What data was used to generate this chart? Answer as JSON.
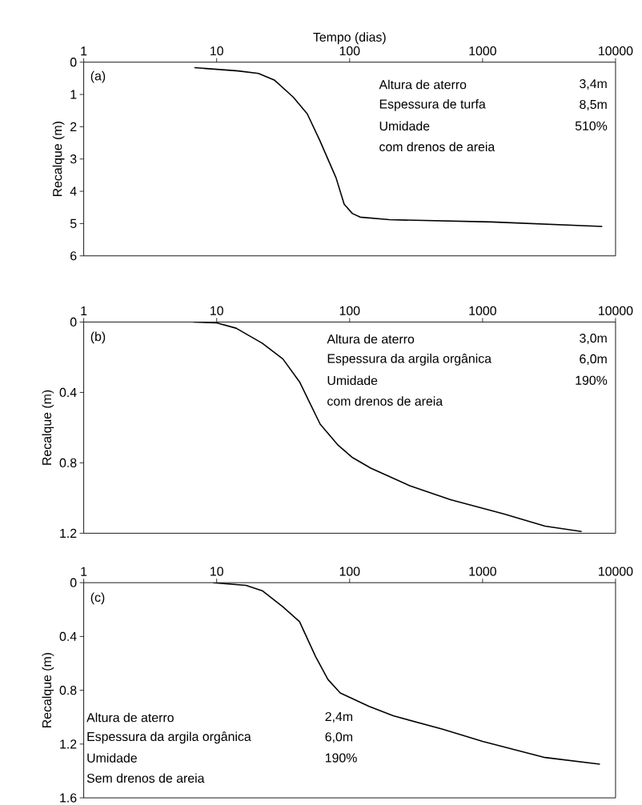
{
  "chart_data": [
    {
      "type": "line",
      "xlabel": "Tempo (dias)",
      "ylabel": "Recalque (m)",
      "log": "x",
      "xlim": [
        1,
        10000
      ],
      "xticks": [
        1,
        10,
        100,
        1000,
        10000
      ],
      "ylim": [
        6,
        0
      ],
      "yticks": [
        0,
        1,
        2,
        3,
        4,
        5,
        6
      ],
      "series": [
        {
          "color": "#000000",
          "x": [
            6.8,
            14.5,
            20.6,
            27.3,
            37.6,
            48,
            59.6,
            79,
            91,
            105,
            120,
            199,
            1170,
            7940
          ],
          "values": [
            0.17,
            0.27,
            0.35,
            0.56,
            1.08,
            1.6,
            2.42,
            3.58,
            4.4,
            4.69,
            4.8,
            4.88,
            4.95,
            5.09
          ]
        }
      ],
      "annotations": [
        "(a)",
        "Altura de aterro",
        "3,4m",
        "Espessura de turfa",
        "8,5m",
        "Umidade",
        "510%",
        "com drenos de areia"
      ]
    },
    {
      "type": "line",
      "ylabel": "Recalque (m)",
      "log": "x",
      "xlim": [
        1,
        10000
      ],
      "xticks": [
        1,
        10,
        100,
        1000,
        10000
      ],
      "ylim": [
        1.2,
        0
      ],
      "yticks": [
        0,
        0.4,
        0.8,
        1.2
      ],
      "series": [
        {
          "color": "#000000",
          "x": [
            6.7,
            10,
            14,
            22,
            31.5,
            42,
            60,
            82,
            105,
            144,
            283,
            575,
            1445,
            2950,
            5560
          ],
          "values": [
            0,
            0.005,
            0.035,
            0.12,
            0.21,
            0.34,
            0.58,
            0.7,
            0.77,
            0.83,
            0.93,
            1.01,
            1.09,
            1.16,
            1.19
          ]
        }
      ],
      "annotations": [
        "(b)",
        "Altura de aterro",
        "3,0m",
        "Espessura da argila orgânica",
        "6,0m",
        "Umidade",
        "190%",
        "com drenos de areia"
      ]
    },
    {
      "type": "line",
      "ylabel": "Recalque (m)",
      "log": "x",
      "xlim": [
        1,
        10000
      ],
      "xticks": [
        1,
        10,
        100,
        1000,
        10000
      ],
      "ylim": [
        1.6,
        0
      ],
      "yticks": [
        0,
        0.4,
        0.8,
        1.2,
        1.6
      ],
      "series": [
        {
          "color": "#000000",
          "x": [
            9.4,
            16.6,
            22,
            31.5,
            42,
            55.5,
            68.7,
            85,
            140,
            213,
            500,
            1000,
            2950,
            7630
          ],
          "values": [
            0,
            0.02,
            0.06,
            0.18,
            0.29,
            0.55,
            0.72,
            0.82,
            0.92,
            0.99,
            1.09,
            1.18,
            1.3,
            1.35
          ]
        }
      ],
      "annotations": [
        "(c)",
        "Altura de aterro",
        "2,4m",
        "Espessura da argila orgânica",
        "6,0m",
        "Umidade",
        "190%",
        "Sem drenos de areia"
      ]
    }
  ]
}
